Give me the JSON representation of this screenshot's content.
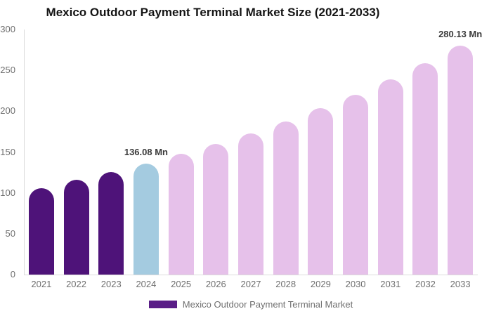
{
  "title": "Mexico Outdoor Payment Terminal Market Size (2021-2033)",
  "legend": {
    "label": "Mexico Outdoor Payment Terminal Market",
    "swatch_color": "#5a1e87"
  },
  "colors": {
    "historical_bar": "#4e1379",
    "current_year_bar": "#a4cbe0",
    "forecast_bar": "#e6c1ea",
    "axis_line": "#dbdbdb",
    "axis_text": "#6f6f6f",
    "annotation_text": "#3a3a3a",
    "title_text": "#141414",
    "background": "#ffffff"
  },
  "chart_data": {
    "type": "bar",
    "title": "Mexico Outdoor Payment Terminal Market Size (2021-2033)",
    "categories": [
      "2021",
      "2022",
      "2023",
      "2024",
      "2025",
      "2026",
      "2027",
      "2028",
      "2029",
      "2030",
      "2031",
      "2032",
      "2033"
    ],
    "values": [
      106.0,
      116.1,
      125.6,
      136.08,
      147.46,
      159.79,
      173.15,
      187.63,
      203.32,
      220.32,
      238.74,
      258.7,
      280.13
    ],
    "unit": "Mn",
    "xlabel": "",
    "ylabel": "",
    "ylim": [
      0,
      300
    ],
    "yticks": [
      0,
      50,
      100,
      150,
      200,
      250,
      300
    ],
    "grid": false,
    "legend_position": "bottom",
    "bar_colors": [
      "#4e1379",
      "#4e1379",
      "#4e1379",
      "#a4cbe0",
      "#e6c1ea",
      "#e6c1ea",
      "#e6c1ea",
      "#e6c1ea",
      "#e6c1ea",
      "#e6c1ea",
      "#e6c1ea",
      "#e6c1ea",
      "#e6c1ea"
    ],
    "annotations": [
      {
        "index": 3,
        "text": "136.08 Mn"
      },
      {
        "index": 12,
        "text": "280.13 Mn"
      }
    ]
  }
}
